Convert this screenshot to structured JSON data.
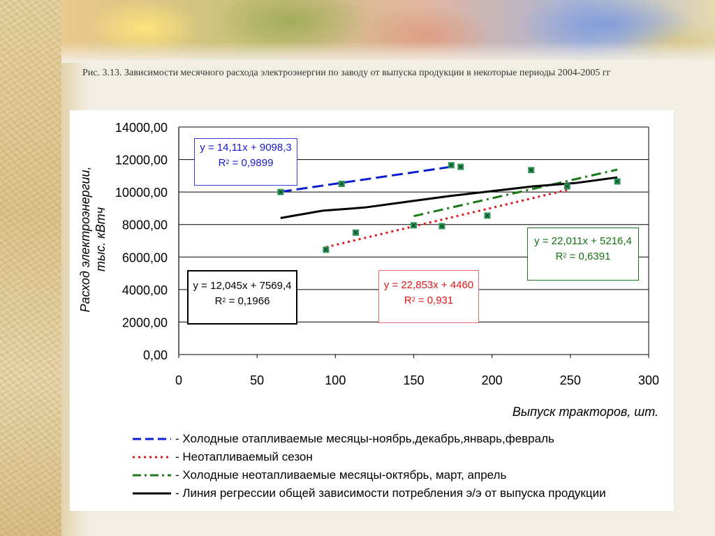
{
  "caption": "Рис. 3.13. Зависимости месячного расхода электроэнергии по заводу от выпуска продукции в некоторые периоды 2004-2005 гг",
  "chart_data": {
    "type": "scatter",
    "xlabel": "Выпуск тракторов, шт.",
    "ylabel_line1": "Расход электроэнергии,",
    "ylabel_line2": "тыс. кВтч",
    "xlim": [
      0,
      300
    ],
    "ylim": [
      0,
      14000
    ],
    "x_ticks": [
      "0",
      "50",
      "100",
      "150",
      "200",
      "250",
      "300"
    ],
    "y_ticks": [
      "0,00",
      "2000,00",
      "4000,00",
      "6000,00",
      "8000,00",
      "10000,00",
      "12000,00",
      "14000,00"
    ],
    "grid": "horizontal",
    "points": [
      {
        "x": 65,
        "y": 10000
      },
      {
        "x": 94,
        "y": 6450
      },
      {
        "x": 104,
        "y": 10500
      },
      {
        "x": 113,
        "y": 7500
      },
      {
        "x": 150,
        "y": 7950
      },
      {
        "x": 168,
        "y": 7900
      },
      {
        "x": 174,
        "y": 11650
      },
      {
        "x": 180,
        "y": 11550
      },
      {
        "x": 197,
        "y": 8550
      },
      {
        "x": 225,
        "y": 11350
      },
      {
        "x": 248,
        "y": 10350
      },
      {
        "x": 280,
        "y": 10650
      }
    ],
    "trendlines": [
      {
        "id": "cold-heated",
        "color": "#0b1fd1",
        "dash": "dash",
        "x": [
          65,
          175
        ],
        "slope": 14.11,
        "intercept": 9098.3,
        "eq_line1": "y = 14,11x + 9098,3",
        "eq_r2_label": "R",
        "eq_r2_sup": "2",
        "eq_r2_value": " = 0,9899",
        "eq_color": "#1a1ad4",
        "box_border": "#3a3ad8"
      },
      {
        "id": "non-heated",
        "color": "#e01616",
        "dash": "dot",
        "x": [
          94,
          248
        ],
        "slope": 22.853,
        "intercept": 4460,
        "eq_line1": "y = 22,853x + 4460",
        "eq_r2_label": "R",
        "eq_r2_sup": "2",
        "eq_r2_value": " = 0,931",
        "eq_color": "#e01616",
        "box_border": "#e06060"
      },
      {
        "id": "cold-nonheated",
        "color": "#1a7a1a",
        "dash": "dashdot",
        "x": [
          150,
          280
        ],
        "slope": 22.011,
        "intercept": 5216.4,
        "eq_line1": "y = 22,011x + 5216,4",
        "eq_r2_label": "R",
        "eq_r2_sup": "2",
        "eq_r2_value": " = 0,6391",
        "eq_color": "#147014",
        "box_border": "#1a7a1a"
      },
      {
        "id": "general",
        "color": "#000000",
        "dash": "solid",
        "x": [
          65,
          280
        ],
        "curve_y": [
          8400,
          8850,
          9050,
          9400,
          9750,
          10050,
          10350,
          10550,
          10900
        ],
        "eq_line1": "y = 12,045x + 7569,4",
        "eq_r2_label": "R",
        "eq_r2_sup": "2",
        "eq_r2_value": " = 0,1966",
        "eq_color": "#000000",
        "box_border": "#000000"
      }
    ],
    "legend": [
      {
        "color": "#0b1fd1",
        "dash": "dash",
        "label": "- Холодные отапливаемые месяцы-ноябрь,декабрь,январь,февраль"
      },
      {
        "color": "#e01616",
        "dash": "dot",
        "label": "- Неотапливаемый сезон"
      },
      {
        "color": "#1a7a1a",
        "dash": "dashdot",
        "label": "- Холодные неотапливаемые месяцы-октябрь, март, апрель"
      },
      {
        "color": "#000000",
        "dash": "solid",
        "label": "- Линия регрессии общей зависимости потребления э/э от выпуска продукции"
      }
    ],
    "marker_color": "#2e9a5a"
  }
}
